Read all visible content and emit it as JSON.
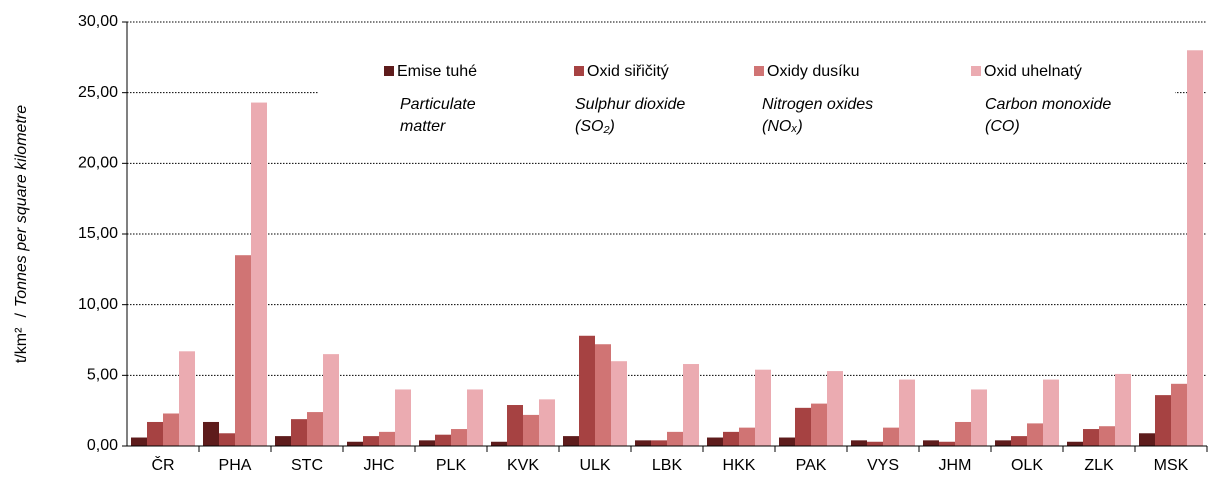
{
  "chart_data": {
    "type": "bar",
    "ylabel": [
      "t/km²",
      "/",
      "Tonnes per square kilometre"
    ],
    "categories": [
      "ČR",
      "PHA",
      "STC",
      "JHC",
      "PLK",
      "KVK",
      "ULK",
      "LBK",
      "HKK",
      "PAK",
      "VYS",
      "JHM",
      "OLK",
      "ZLK",
      "MSK"
    ],
    "series": [
      {
        "name": "Emise tuhé",
        "color": "#5e1c1c",
        "values": [
          0.6,
          1.7,
          0.7,
          0.3,
          0.4,
          0.3,
          0.7,
          0.4,
          0.6,
          0.6,
          0.4,
          0.4,
          0.4,
          0.3,
          0.9
        ]
      },
      {
        "name": "Oxid siřičitý",
        "color": "#a64242",
        "values": [
          1.7,
          0.9,
          1.9,
          0.7,
          0.8,
          2.9,
          7.8,
          0.4,
          1.0,
          2.7,
          0.3,
          0.3,
          0.7,
          1.2,
          3.6
        ]
      },
      {
        "name": "Oxidy dusíku",
        "color": "#d07474",
        "values": [
          2.3,
          13.5,
          2.4,
          1.0,
          1.2,
          2.2,
          7.2,
          1.0,
          1.3,
          3.0,
          1.3,
          1.7,
          1.6,
          1.4,
          4.4
        ]
      },
      {
        "name": "Oxid uhelnatý",
        "color": "#ebabb1",
        "values": [
          6.7,
          24.3,
          6.5,
          4.0,
          4.0,
          3.3,
          6.0,
          5.8,
          5.4,
          5.3,
          4.7,
          4.0,
          4.7,
          5.1,
          28.0
        ]
      }
    ],
    "annotations": [
      [
        "Particulate",
        "matter"
      ],
      [
        "Sulphur dioxide",
        "(SO₂)"
      ],
      [
        "Nitrogen oxides",
        "(NOₓ)"
      ],
      [
        "Carbon monoxide",
        "(CO)"
      ]
    ],
    "ylim": [
      0,
      30
    ],
    "yticks": [
      {
        "value": 0,
        "label": "0,00"
      },
      {
        "value": 5,
        "label": "5,00"
      },
      {
        "value": 10,
        "label": "10,00"
      },
      {
        "value": 15,
        "label": "15,00"
      },
      {
        "value": 20,
        "label": "20,00"
      },
      {
        "value": 25,
        "label": "25,00"
      },
      {
        "value": 30,
        "label": "30,00"
      }
    ],
    "grid": true,
    "legend": "top"
  }
}
